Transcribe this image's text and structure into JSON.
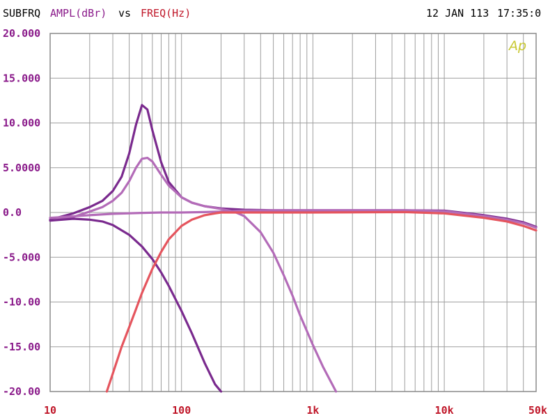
{
  "header": {
    "left_label": "SUBFRQ",
    "y_name": "AMPL(dBr)",
    "vs": "vs",
    "x_name": "FREQ(Hz)",
    "date": "12 JAN 113",
    "time": "17:35:0"
  },
  "logo_text": "Ap",
  "colors": {
    "y_axis_text": "#8a1a8a",
    "x_axis_text": "#c0182a",
    "grid": "#9e9e9e",
    "border": "#8a8a8a",
    "logo": "#c8c830"
  },
  "chart_data": {
    "type": "line",
    "x_scale": "log",
    "xlim": [
      10,
      50000
    ],
    "ylim": [
      -20,
      20
    ],
    "grid": true,
    "y_ticks": [
      {
        "value": 20,
        "label": "20.000"
      },
      {
        "value": 15,
        "label": "15.000"
      },
      {
        "value": 10,
        "label": "10.000"
      },
      {
        "value": 5,
        "label": "5.0000"
      },
      {
        "value": 0,
        "label": "0.0"
      },
      {
        "value": -5,
        "label": "-5.000"
      },
      {
        "value": -10,
        "label": "-10.00"
      },
      {
        "value": -15,
        "label": "-15.00"
      },
      {
        "value": -20,
        "label": "-20.00"
      }
    ],
    "x_ticks": [
      {
        "value": 10,
        "label": "10"
      },
      {
        "value": 100,
        "label": "100"
      },
      {
        "value": 1000,
        "label": "1k"
      },
      {
        "value": 10000,
        "label": "10k"
      },
      {
        "value": 50000,
        "label": "50k"
      }
    ],
    "series": [
      {
        "color": "#7a2a8e",
        "x": [
          10,
          15,
          20,
          25,
          30,
          35,
          40,
          45,
          50,
          55,
          60,
          70,
          80,
          100,
          120,
          150,
          200,
          300,
          500,
          1000,
          2000,
          5000,
          10000,
          20000,
          30000,
          40000,
          50000
        ],
        "y": [
          -0.8,
          -0.1,
          0.6,
          1.3,
          2.4,
          4.0,
          6.6,
          9.8,
          12.0,
          11.5,
          9.2,
          5.6,
          3.4,
          1.7,
          1.1,
          0.7,
          0.45,
          0.3,
          0.25,
          0.25,
          0.25,
          0.25,
          0.2,
          -0.3,
          -0.7,
          -1.1,
          -1.6
        ]
      },
      {
        "color": "#b36bb8",
        "x": [
          10,
          15,
          20,
          25,
          30,
          35,
          40,
          45,
          50,
          55,
          60,
          70,
          80,
          100,
          120,
          150,
          200,
          250,
          300,
          400,
          500,
          600,
          700,
          800,
          1000,
          1200,
          1500
        ],
        "y": [
          -0.9,
          -0.5,
          0.1,
          0.6,
          1.3,
          2.2,
          3.5,
          5.0,
          6.0,
          6.1,
          5.7,
          4.2,
          3.0,
          1.7,
          1.1,
          0.7,
          0.4,
          0.1,
          -0.4,
          -2.2,
          -4.5,
          -7.0,
          -9.3,
          -11.5,
          -14.8,
          -17.3,
          -20.0
        ]
      },
      {
        "color": "#7a2a8e",
        "x": [
          10,
          15,
          20,
          25,
          30,
          40,
          50,
          60,
          70,
          80,
          100,
          120,
          150,
          180,
          200
        ],
        "y": [
          -0.9,
          -0.7,
          -0.8,
          -1.0,
          -1.4,
          -2.5,
          -3.8,
          -5.2,
          -6.7,
          -8.2,
          -11.0,
          -13.5,
          -16.8,
          -19.2,
          -20.0
        ]
      },
      {
        "color": "#b36bb8",
        "x": [
          10,
          20,
          30,
          50,
          70,
          100,
          150,
          200,
          300,
          500,
          1000,
          5000,
          10000,
          20000,
          30000,
          40000,
          50000
        ],
        "y": [
          -0.6,
          -0.3,
          -0.15,
          -0.05,
          0.0,
          0.0,
          0.05,
          0.1,
          0.2,
          0.25,
          0.25,
          0.25,
          0.15,
          -0.4,
          -0.8,
          -1.2,
          -1.7
        ]
      },
      {
        "color": "#e5555e",
        "x": [
          27,
          30,
          35,
          40,
          45,
          50,
          60,
          70,
          80,
          100,
          120,
          150,
          180,
          200,
          250,
          300,
          500,
          1000,
          5000,
          10000,
          20000,
          30000,
          40000,
          50000
        ],
        "y": [
          -20.0,
          -18.0,
          -15.0,
          -12.8,
          -10.8,
          -9.0,
          -6.3,
          -4.4,
          -3.0,
          -1.5,
          -0.8,
          -0.3,
          -0.1,
          0.0,
          0.0,
          0.0,
          0.0,
          0.0,
          0.05,
          -0.1,
          -0.6,
          -1.0,
          -1.5,
          -2.0
        ]
      }
    ]
  }
}
